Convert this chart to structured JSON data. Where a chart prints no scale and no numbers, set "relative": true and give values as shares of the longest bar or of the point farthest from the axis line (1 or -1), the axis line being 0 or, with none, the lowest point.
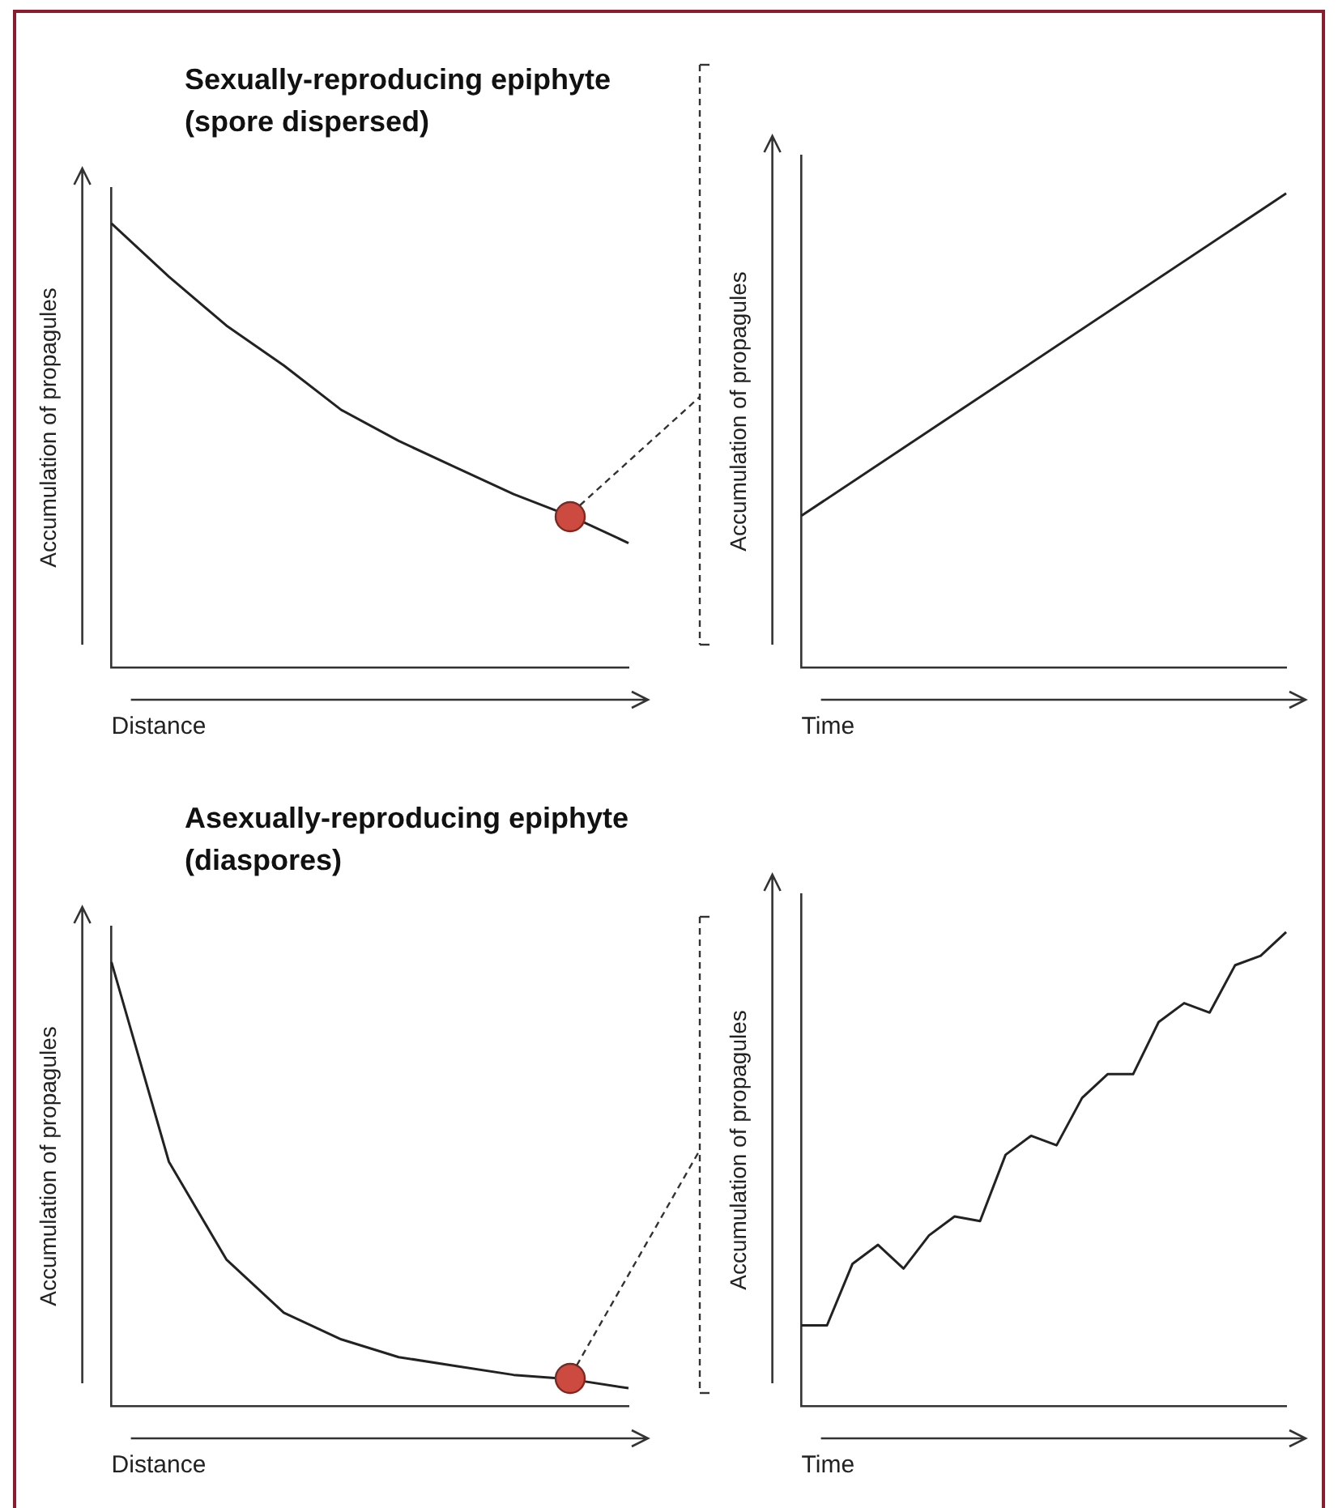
{
  "chart_data": [
    {
      "type": "line",
      "title": "Sexually-reproducing epiphyte (spore dispersed)",
      "xlabel": "Distance",
      "ylabel": "Accumulation of propagules",
      "relative": true,
      "categories": [
        null,
        null,
        null,
        null,
        null,
        null,
        null,
        null,
        null,
        null
      ],
      "series": [
        {
          "type": "line",
          "color": "#222222",
          "marker": "none",
          "values": [
            1.0,
            0.88,
            0.77,
            0.68,
            0.58,
            0.51,
            0.45,
            0.39,
            0.34,
            0.28
          ]
        }
      ]
    },
    {
      "type": "line",
      "xlabel": "Time",
      "ylabel": "Accumulation of propagules",
      "relative": true,
      "categories": [
        null,
        null
      ],
      "series": [
        {
          "type": "line",
          "color": "#222222",
          "marker": "none",
          "values": [
            0.32,
            1.0
          ]
        }
      ]
    },
    {
      "type": "line",
      "title": "Asexually-reproducing epiphyte (diaspores)",
      "xlabel": "Distance",
      "ylabel": "Accumulation of propagules",
      "relative": true,
      "categories": [
        null,
        null,
        null,
        null,
        null,
        null,
        null,
        null,
        null,
        null
      ],
      "series": [
        {
          "type": "line",
          "color": "#222222",
          "marker": "none",
          "values": [
            1.0,
            0.55,
            0.33,
            0.21,
            0.15,
            0.11,
            0.09,
            0.07,
            0.06,
            0.04
          ]
        }
      ]
    },
    {
      "type": "line",
      "xlabel": "Time",
      "ylabel": "Accumulation of propagules",
      "relative": true,
      "categories": [
        null,
        null,
        null,
        null,
        null,
        null,
        null,
        null,
        null,
        null,
        null,
        null,
        null,
        null,
        null,
        null,
        null,
        null,
        null,
        null
      ],
      "series": [
        {
          "type": "line",
          "color": "#222222",
          "marker": "none",
          "values": [
            0.17,
            0.17,
            0.3,
            0.34,
            0.29,
            0.36,
            0.4,
            0.39,
            0.53,
            0.57,
            0.55,
            0.65,
            0.7,
            0.7,
            0.81,
            0.85,
            0.83,
            0.93,
            0.95,
            1.0
          ]
        }
      ]
    }
  ]
}
